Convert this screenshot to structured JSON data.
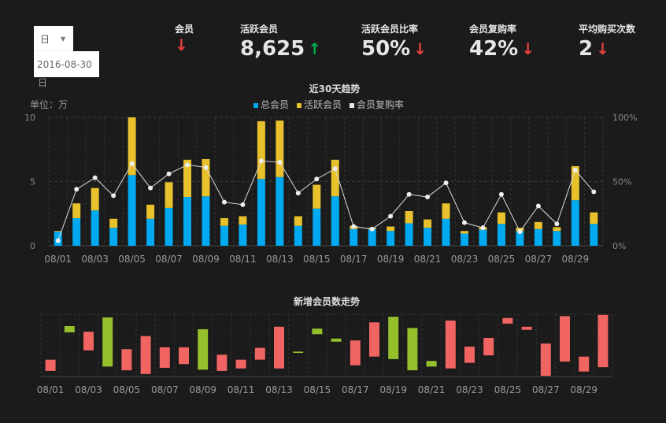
{
  "filter": {
    "period_select": "日",
    "period_caret": "▼",
    "date_value": "2016-08-30",
    "period_label": "日"
  },
  "kpis": [
    {
      "label": "会员",
      "value": "",
      "trend": "down"
    },
    {
      "label": "活跃会员",
      "value": "8,625",
      "trend": "up"
    },
    {
      "label": "活跃会员比率",
      "value": "50%",
      "trend": "down"
    },
    {
      "label": "会员复购率",
      "value": "42%",
      "trend": "down"
    },
    {
      "label": "平均购买次数",
      "value": "2",
      "trend": "down"
    }
  ],
  "icons": {
    "up": "↑",
    "down": "↓"
  },
  "colors": {
    "background": "#1b1b1b",
    "total": "#00a9f0",
    "active": "#e8c12c",
    "rate": "#e6e6e6",
    "up": "#00b050",
    "down": "#e8413b",
    "increase": "#95c02c",
    "decrease": "#f06462"
  },
  "unit_label": "单位：万",
  "chart_data": [
    {
      "type": "bar",
      "title": "近30天趋势",
      "stacked": true,
      "legend_position": "top",
      "categories": [
        "08/01",
        "08/02",
        "08/03",
        "08/04",
        "08/05",
        "08/06",
        "08/07",
        "08/08",
        "08/09",
        "08/10",
        "08/11",
        "08/12",
        "08/13",
        "08/14",
        "08/15",
        "08/16",
        "08/17",
        "08/18",
        "08/19",
        "08/20",
        "08/21",
        "08/22",
        "08/23",
        "08/24",
        "08/25",
        "08/26",
        "08/27",
        "08/28",
        "08/29",
        "08/30"
      ],
      "x_tick_labels": [
        "08/01",
        "08/03",
        "08/05",
        "08/07",
        "08/09",
        "08/11",
        "08/13",
        "08/15",
        "08/17",
        "08/19",
        "08/21",
        "08/23",
        "08/25",
        "08/27",
        "08/29"
      ],
      "ylim": [
        0,
        10
      ],
      "y_ticks": [
        "0",
        "5",
        "10"
      ],
      "y2lim": [
        0,
        100
      ],
      "y2_ticks": [
        "0%",
        "50%",
        "100%"
      ],
      "grid": true,
      "series": [
        {
          "name": "总会员",
          "type": "bar",
          "values": [
            1.1,
            2.15,
            2.75,
            1.4,
            5.5,
            2.1,
            2.95,
            3.8,
            3.85,
            1.55,
            1.65,
            5.2,
            5.35,
            1.55,
            2.9,
            3.85,
            1.3,
            1.3,
            1.15,
            1.75,
            1.4,
            2.1,
            0.95,
            1.25,
            1.7,
            1.15,
            1.3,
            1.15,
            3.55,
            1.7
          ]
        },
        {
          "name": "活跃会员",
          "type": "bar",
          "values": [
            0.05,
            1.15,
            1.75,
            0.7,
            4.5,
            1.1,
            2.0,
            2.9,
            2.9,
            0.6,
            0.65,
            4.5,
            4.4,
            0.75,
            1.85,
            2.85,
            0.25,
            0.1,
            0.35,
            0.95,
            0.65,
            1.2,
            0.2,
            0.2,
            0.9,
            0.25,
            0.55,
            0.3,
            2.65,
            0.9
          ]
        },
        {
          "name": "会员复购率",
          "type": "line",
          "axis": "right",
          "values": [
            4,
            44,
            53,
            39,
            64,
            45,
            56,
            63,
            61,
            34,
            32,
            66,
            65,
            41,
            52,
            60,
            15,
            13,
            23,
            40,
            38,
            49,
            18,
            14,
            40,
            11,
            31,
            17,
            59,
            42
          ]
        }
      ]
    },
    {
      "type": "bar",
      "title": "新增会员数走势",
      "floating": true,
      "y_axis_labels": false,
      "grid": true,
      "categories": [
        "08/01",
        "08/02",
        "08/03",
        "08/04",
        "08/05",
        "08/06",
        "08/07",
        "08/08",
        "08/09",
        "08/10",
        "08/11",
        "08/12",
        "08/13",
        "08/14",
        "08/15",
        "08/16",
        "08/17",
        "08/18",
        "08/19",
        "08/20",
        "08/21",
        "08/22",
        "08/23",
        "08/24",
        "08/25",
        "08/26",
        "08/27",
        "08/28",
        "08/29",
        "08/30"
      ],
      "x_tick_labels": [
        "08/01",
        "08/03",
        "08/05",
        "08/07",
        "08/09",
        "08/11",
        "08/13",
        "08/15",
        "08/17",
        "08/19",
        "08/21",
        "08/23",
        "08/25",
        "08/27",
        "08/29"
      ],
      "ylim": [
        0,
        100
      ],
      "ranges": [
        [
          9,
          27
        ],
        [
          71,
          81
        ],
        [
          42,
          72
        ],
        [
          16,
          95
        ],
        [
          10,
          44
        ],
        [
          4,
          65
        ],
        [
          14,
          47
        ],
        [
          20,
          47
        ],
        [
          11,
          76
        ],
        [
          9,
          35
        ],
        [
          13,
          27
        ],
        [
          27,
          46
        ],
        [
          13,
          80
        ],
        [
          38,
          40
        ],
        [
          68,
          77
        ],
        [
          56,
          61
        ],
        [
          18,
          58
        ],
        [
          32,
          87
        ],
        [
          28,
          96
        ],
        [
          10,
          78
        ],
        [
          16,
          25
        ],
        [
          13,
          90
        ],
        [
          22,
          48
        ],
        [
          34,
          62
        ],
        [
          85,
          94
        ],
        [
          75,
          80
        ],
        [
          1,
          53
        ],
        [
          24,
          97
        ],
        [
          8,
          32
        ],
        [
          15,
          99
        ]
      ],
      "direction": [
        "down",
        "up",
        "down",
        "up",
        "down",
        "down",
        "down",
        "down",
        "up",
        "down",
        "down",
        "down",
        "down",
        "up",
        "up",
        "up",
        "down",
        "down",
        "up",
        "up",
        "up",
        "down",
        "down",
        "down",
        "down",
        "down",
        "down",
        "down",
        "down",
        "down"
      ]
    }
  ]
}
